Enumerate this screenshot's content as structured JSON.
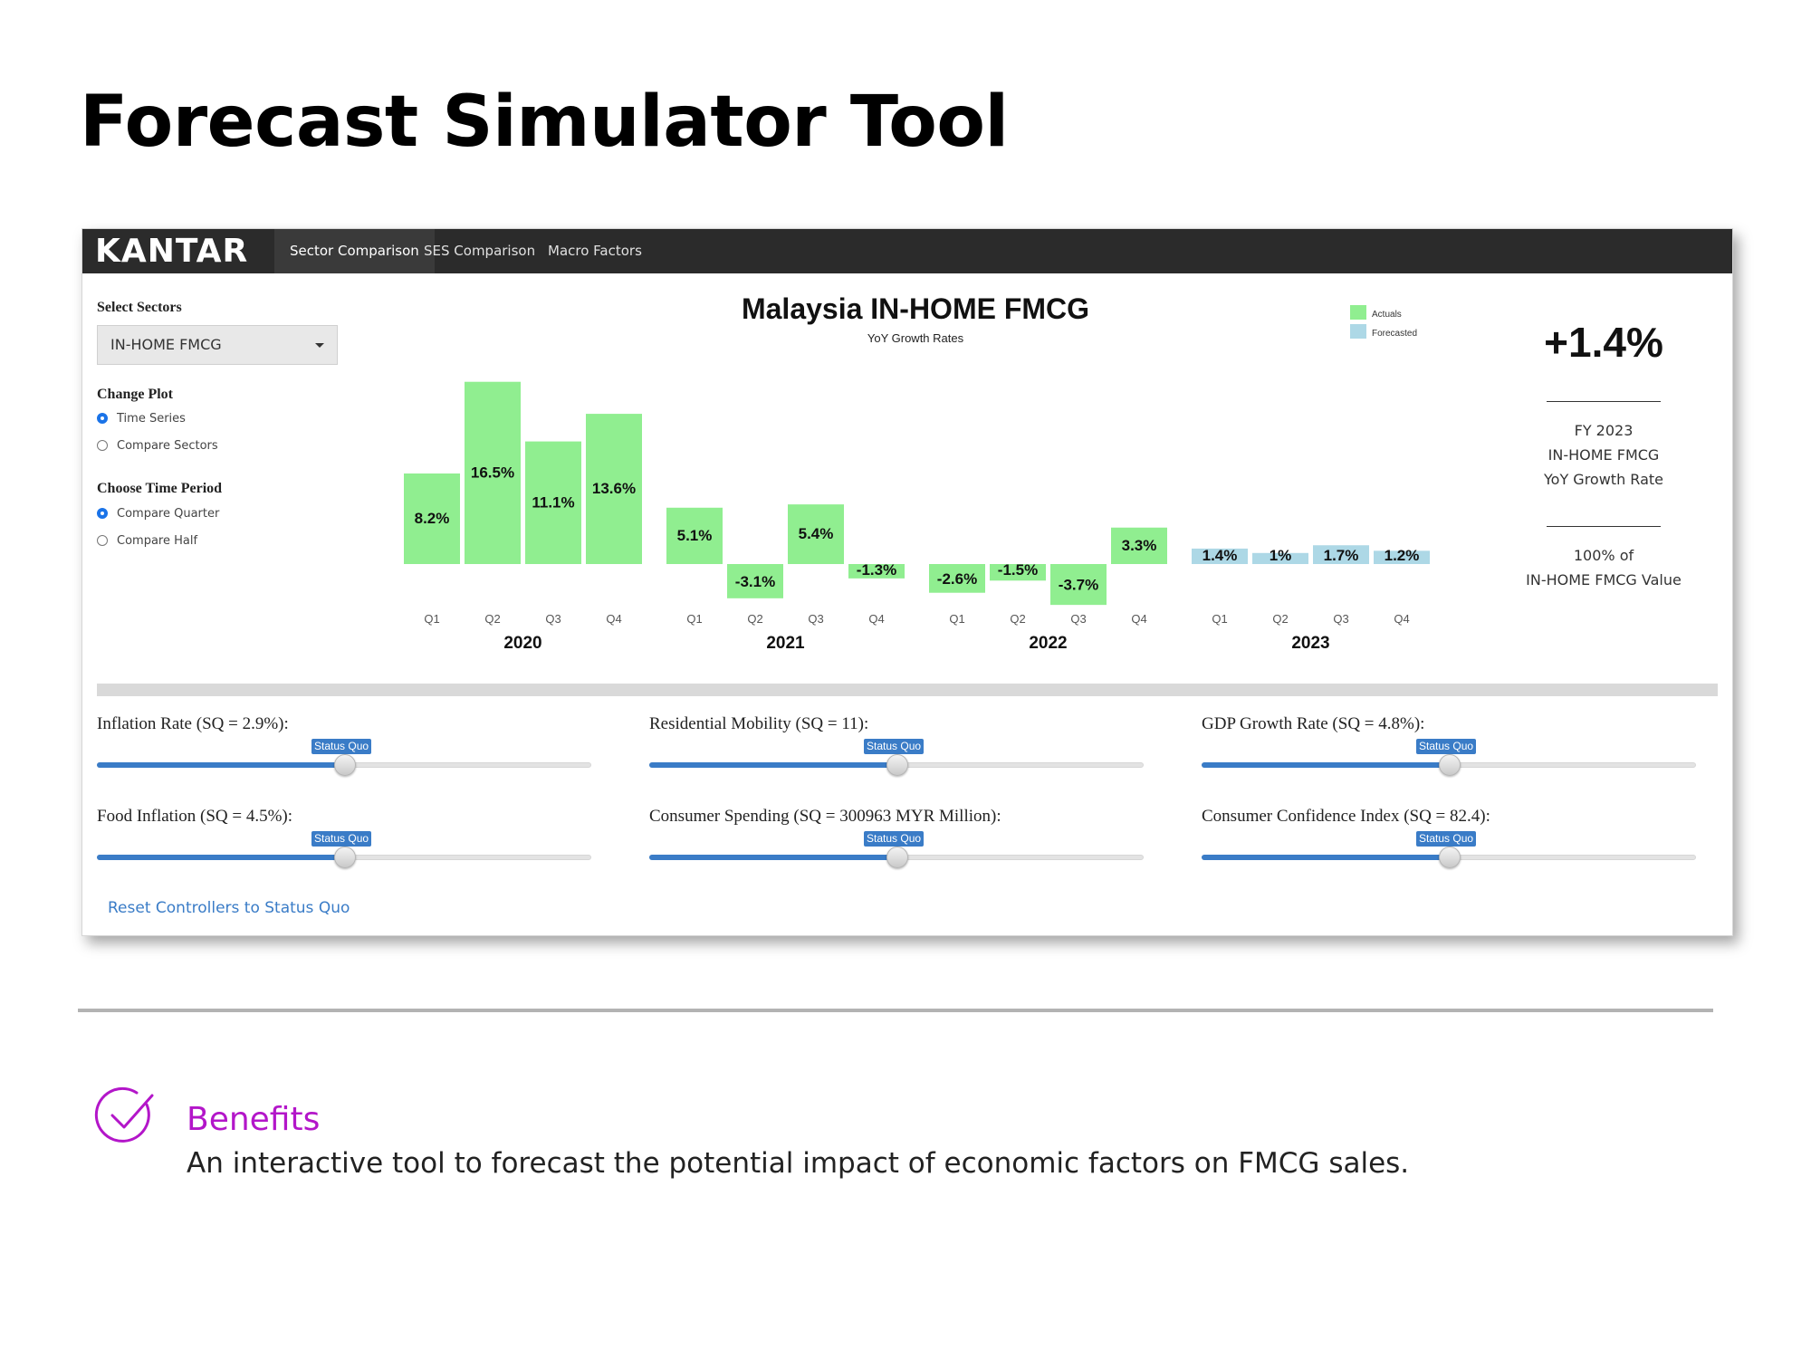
{
  "page": {
    "title": "Forecast Simulator Tool"
  },
  "app": {
    "logo_text": "KANTAR",
    "nav": [
      {
        "label": "Sector Comparison",
        "active": true
      },
      {
        "label": "SES Comparison",
        "active": false
      },
      {
        "label": "Macro Factors",
        "active": false
      }
    ]
  },
  "sidebar": {
    "select_sectors_label": "Select Sectors",
    "sector_value": "IN-HOME FMCG",
    "change_plot_label": "Change Plot",
    "plot_options": [
      {
        "label": "Time Series",
        "checked": true
      },
      {
        "label": "Compare Sectors",
        "checked": false
      }
    ],
    "time_period_label": "Choose Time Period",
    "period_options": [
      {
        "label": "Compare Quarter",
        "checked": true
      },
      {
        "label": "Compare Half",
        "checked": false
      }
    ]
  },
  "chart_data": {
    "type": "bar",
    "title": "Malaysia IN-HOME FMCG",
    "subtitle": "YoY Growth Rates",
    "legend": [
      {
        "name": "Actuals",
        "color": "#90ee90"
      },
      {
        "name": "Forecasted",
        "color": "#add8e6"
      }
    ],
    "legend_position": "top-right",
    "grid": false,
    "groups": [
      {
        "year": "2020",
        "quarters": [
          "Q1",
          "Q2",
          "Q3",
          "Q4"
        ],
        "values": [
          8.2,
          16.5,
          11.1,
          13.6
        ],
        "labels": [
          "8.2%",
          "16.5%",
          "11.1%",
          "13.6%"
        ],
        "series": "Actuals"
      },
      {
        "year": "2021",
        "quarters": [
          "Q1",
          "Q2",
          "Q3",
          "Q4"
        ],
        "values": [
          5.1,
          -3.1,
          5.4,
          -1.3
        ],
        "labels": [
          "5.1%",
          "-3.1%",
          "5.4%",
          "-1.3%"
        ],
        "series": "Actuals"
      },
      {
        "year": "2022",
        "quarters": [
          "Q1",
          "Q2",
          "Q3",
          "Q4"
        ],
        "values": [
          -2.6,
          -1.5,
          -3.7,
          3.3
        ],
        "labels": [
          "-2.6%",
          "-1.5%",
          "-3.7%",
          "3.3%"
        ],
        "series": "Actuals"
      },
      {
        "year": "2023",
        "quarters": [
          "Q1",
          "Q2",
          "Q3",
          "Q4"
        ],
        "values": [
          1.4,
          1.0,
          1.7,
          1.2
        ],
        "labels": [
          "1.4%",
          "1%",
          "1.7%",
          "1.2%"
        ],
        "series": "Forecasted"
      }
    ],
    "ylim": [
      -4,
      17
    ]
  },
  "kpi": {
    "value": "+1.4%",
    "line1": "FY 2023",
    "line2": "IN-HOME FMCG",
    "line3": "YoY Growth Rate",
    "line4": "100% of",
    "line5": "IN-HOME FMCG Value"
  },
  "controls": {
    "status_quo_label": "Status Quo",
    "sliders": [
      {
        "label": "Inflation Rate (SQ = 2.9%):",
        "level": 0.5
      },
      {
        "label": "Residential Mobility (SQ = 11):",
        "level": 0.5
      },
      {
        "label": "GDP Growth Rate (SQ = 4.8%):",
        "level": 0.5
      },
      {
        "label": "Food Inflation (SQ = 4.5%):",
        "level": 0.5
      },
      {
        "label": "Consumer Spending (SQ = 300963 MYR Million):",
        "level": 0.5
      },
      {
        "label": "Consumer Confidence Index (SQ = 82.4):",
        "level": 0.5
      }
    ],
    "reset_label": "Reset Controllers to Status Quo"
  },
  "benefits": {
    "title": "Benefits",
    "text": "An interactive tool to forecast the potential impact of economic factors on FMCG sales."
  },
  "colors": {
    "accent": "#b316c9",
    "slider": "#3a7cc7",
    "actuals": "#90ee90",
    "forecasted": "#add8e6"
  }
}
